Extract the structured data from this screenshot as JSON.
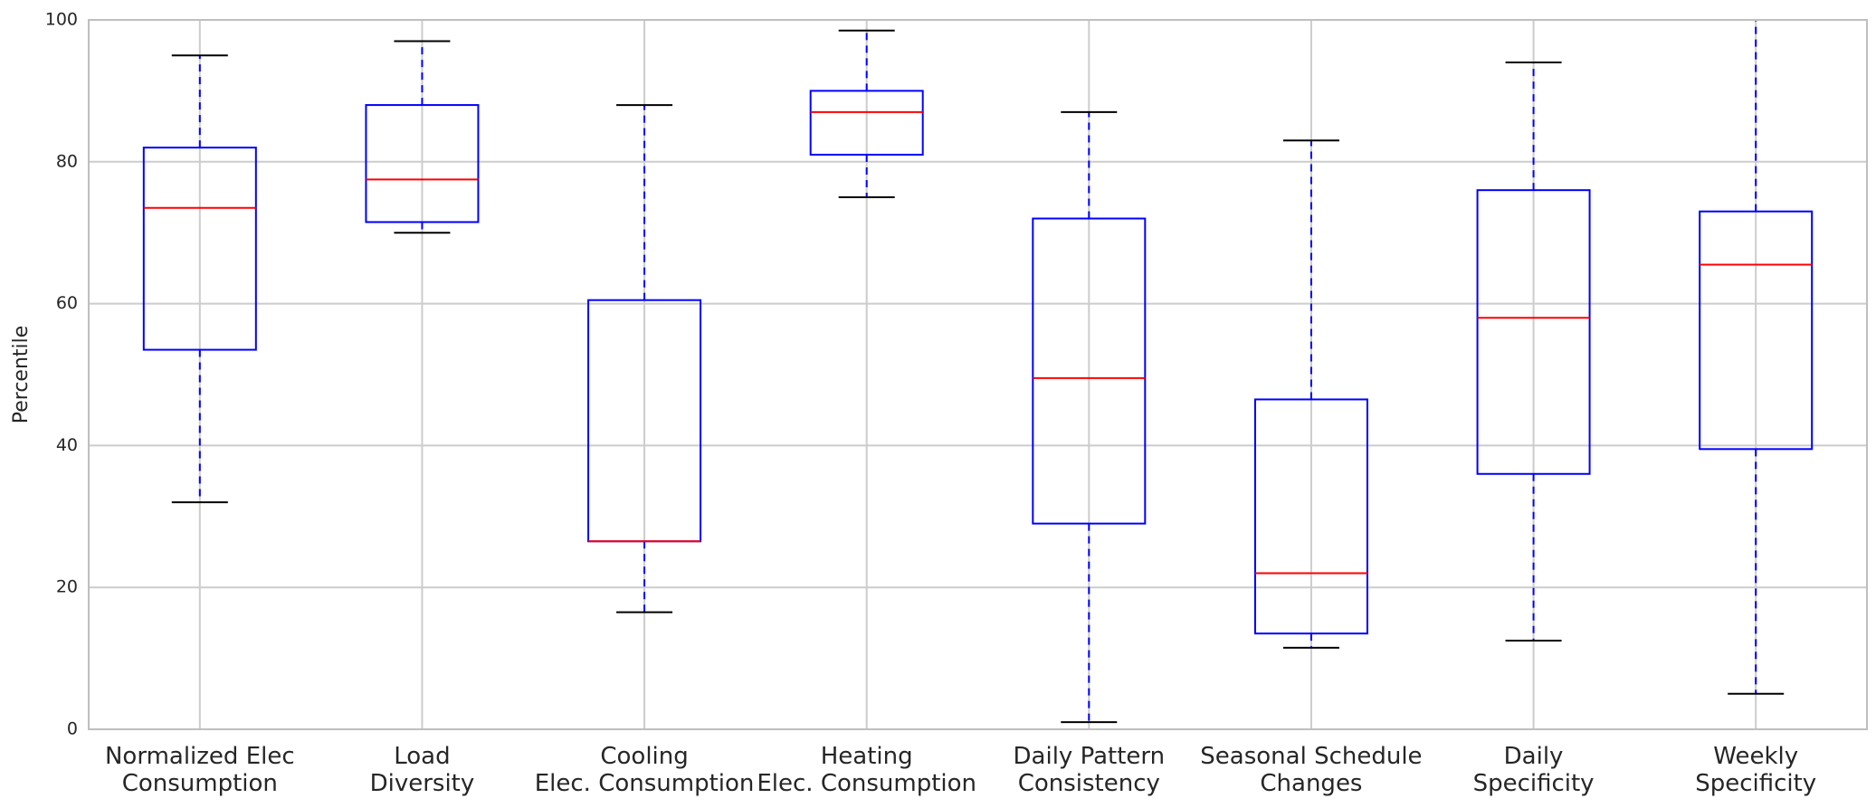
{
  "chart_data": {
    "type": "box",
    "title": "",
    "xlabel": "",
    "ylabel": "Percentile",
    "ylim": [
      0,
      100
    ],
    "yticks": [
      0,
      20,
      40,
      60,
      80,
      100
    ],
    "grid": true,
    "colors": {
      "box": "#0000ff",
      "median": "#ff0000",
      "whisker": "#0000ff",
      "cap": "#000000",
      "grid": "#cccccc",
      "frame": "#bfbfbf"
    },
    "categories": [
      [
        "Normalized Elec",
        "Consumption"
      ],
      [
        "Load",
        "Diversity"
      ],
      [
        "Cooling",
        "Elec. Consumption"
      ],
      [
        "Heating",
        "Elec. Consumption"
      ],
      [
        "Daily Pattern",
        "Consistency"
      ],
      [
        "Seasonal Schedule",
        "Changes"
      ],
      [
        "Daily",
        "Specificity"
      ],
      [
        "Weekly",
        "Specificity"
      ]
    ],
    "boxes": [
      {
        "whislo": 32,
        "q1": 53.5,
        "median": 73.5,
        "q3": 82,
        "whishi": 95
      },
      {
        "whislo": 70,
        "q1": 71.5,
        "median": 77.5,
        "q3": 88,
        "whishi": 97
      },
      {
        "whislo": 16.5,
        "q1": 26.5,
        "median": 26.5,
        "q3": 60.5,
        "whishi": 88
      },
      {
        "whislo": 75,
        "q1": 81,
        "median": 87,
        "q3": 90,
        "whishi": 98.5
      },
      {
        "whislo": 1,
        "q1": 29,
        "median": 49.5,
        "q3": 72,
        "whishi": 87
      },
      {
        "whislo": 11.5,
        "q1": 13.5,
        "median": 22,
        "q3": 46.5,
        "whishi": 83
      },
      {
        "whislo": 12.5,
        "q1": 36,
        "median": 58,
        "q3": 76,
        "whishi": 94
      },
      {
        "whislo": 5,
        "q1": 39.5,
        "median": 65.5,
        "q3": 73,
        "whishi": 100
      }
    ]
  }
}
